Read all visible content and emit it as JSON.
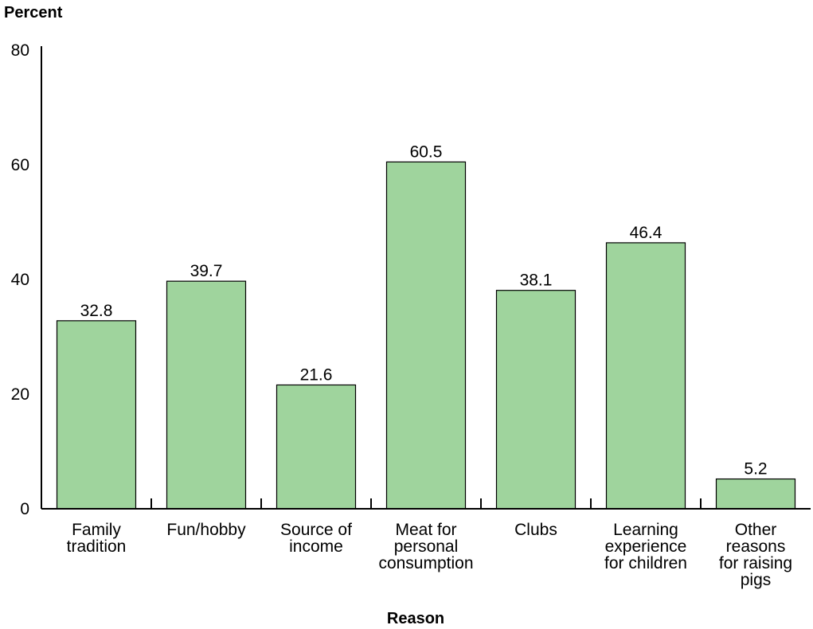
{
  "chart_data": {
    "type": "bar",
    "ylabel": "Percent",
    "xlabel": "Reason",
    "ylim": [
      0,
      80
    ],
    "yticks": [
      0,
      20,
      40,
      60,
      80
    ],
    "grid": false,
    "bar_color": "#9fd49d",
    "bar_edge_color": "#000000",
    "categories": [
      [
        "Family",
        "tradition"
      ],
      [
        "Fun/hobby"
      ],
      [
        "Source of",
        "income"
      ],
      [
        "Meat for",
        "personal",
        "consumption"
      ],
      [
        "Clubs"
      ],
      [
        "Learning",
        "experience",
        "for children"
      ],
      [
        "Other",
        "reasons",
        "for raising",
        "pigs"
      ]
    ],
    "values": [
      32.8,
      39.7,
      21.6,
      60.5,
      38.1,
      46.4,
      5.2
    ]
  }
}
